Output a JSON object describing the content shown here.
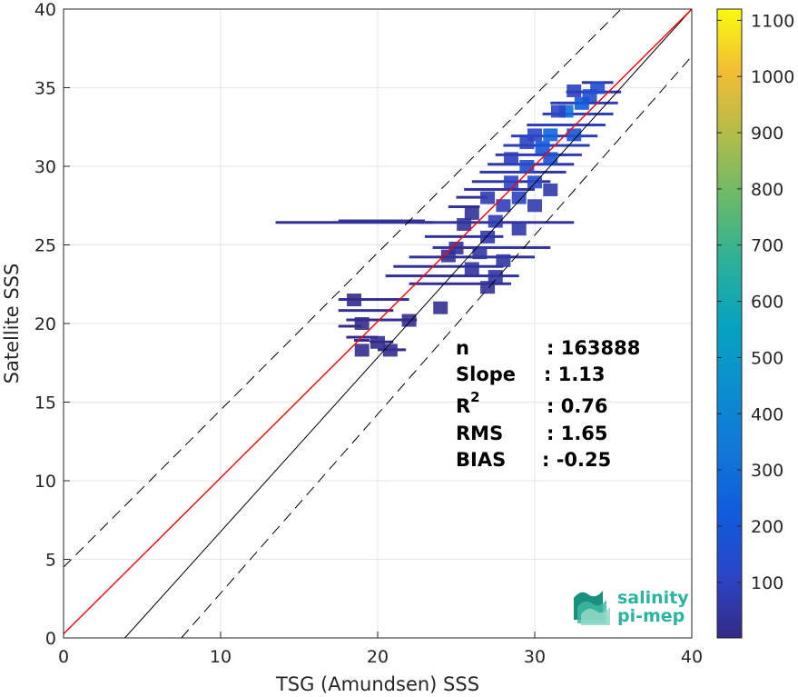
{
  "chart_data": {
    "type": "heatmap",
    "title": "",
    "xlabel": "TSG (Amundsen) SSS",
    "ylabel": "Satellite SSS",
    "xlim": [
      0,
      40
    ],
    "ylim": [
      0,
      40
    ],
    "xticks": [
      "0",
      "10",
      "20",
      "30",
      "40"
    ],
    "yticks": [
      "0",
      "5",
      "10",
      "15",
      "20",
      "25",
      "30",
      "35",
      "40"
    ],
    "grid": true,
    "colormap": "parula",
    "colorbar": {
      "range": [
        1,
        1120
      ],
      "ticks": [
        "100",
        "200",
        "300",
        "400",
        "500",
        "600",
        "700",
        "800",
        "900",
        "1000",
        "1100"
      ]
    },
    "stats": [
      {
        "label": "n",
        "value": ": 163888"
      },
      {
        "label": "Slope",
        "value": ": 1.13"
      },
      {
        "label": "R",
        "sup": "2",
        "value": ": 0.76"
      },
      {
        "label": "RMS",
        "value": ": 1.65"
      },
      {
        "label": "BIAS",
        "value": ": -0.25"
      }
    ],
    "lines": [
      {
        "name": "identity",
        "color": "#000000",
        "style": "solid",
        "x": [
          3.9,
          40
        ],
        "y": [
          0,
          40
        ]
      },
      {
        "name": "regression",
        "color": "#ff0000",
        "style": "solid",
        "x": [
          0,
          40
        ],
        "y": [
          0.25,
          40
        ]
      },
      {
        "name": "upper-bound",
        "color": "#000000",
        "style": "dashed",
        "x": [
          0,
          35.5
        ],
        "y": [
          4.5,
          40
        ]
      },
      {
        "name": "lower-bound",
        "color": "#000000",
        "style": "dashed",
        "x": [
          7.5,
          40
        ],
        "y": [
          0,
          37
        ]
      }
    ],
    "density_bins": [
      [
        32,
        33.5,
        300
      ],
      [
        31,
        32,
        260
      ],
      [
        30.5,
        31.2,
        200
      ],
      [
        33,
        34,
        220
      ],
      [
        32.5,
        32,
        180
      ],
      [
        29.5,
        30,
        150
      ],
      [
        30,
        29,
        130
      ],
      [
        31,
        30.5,
        170
      ],
      [
        33.5,
        34.5,
        160
      ],
      [
        34,
        35,
        140
      ],
      [
        28.5,
        29,
        110
      ],
      [
        29,
        28,
        100
      ],
      [
        28,
        27.5,
        90
      ],
      [
        27.5,
        26.5,
        80
      ],
      [
        27,
        28,
        70
      ],
      [
        28.5,
        30.5,
        90
      ],
      [
        30,
        32,
        120
      ],
      [
        31.5,
        33.5,
        110
      ],
      [
        32.5,
        34.8,
        90
      ],
      [
        29.5,
        31.5,
        100
      ],
      [
        27,
        25.5,
        60
      ],
      [
        26.5,
        24.5,
        50
      ],
      [
        28,
        24,
        55
      ],
      [
        27.5,
        23,
        45
      ],
      [
        26,
        23.5,
        40
      ],
      [
        29,
        26,
        60
      ],
      [
        30,
        27.5,
        70
      ],
      [
        31,
        28.5,
        60
      ],
      [
        27,
        22.3,
        35
      ],
      [
        24.5,
        24.3,
        30
      ],
      [
        25.5,
        26.3,
        35
      ],
      [
        26,
        27,
        30
      ],
      [
        25,
        24.8,
        25
      ],
      [
        24,
        21,
        20
      ],
      [
        22,
        20.2,
        15
      ],
      [
        20,
        18.8,
        10
      ],
      [
        19,
        18.3,
        10
      ],
      [
        20.8,
        18.3,
        12
      ],
      [
        18.5,
        21.5,
        8
      ],
      [
        19,
        20,
        8
      ]
    ],
    "density_streaks": [
      [
        13.5,
        23.5,
        26.4,
        30
      ],
      [
        17.5,
        23.0,
        26.5,
        35
      ],
      [
        22.5,
        32.5,
        26.4,
        40
      ],
      [
        23.0,
        28.0,
        25.5,
        35
      ],
      [
        23.5,
        31.0,
        24.8,
        40
      ],
      [
        22.0,
        30.0,
        24.2,
        35
      ],
      [
        21.0,
        28.0,
        23.6,
        30
      ],
      [
        20.5,
        29.0,
        23.0,
        30
      ],
      [
        22.0,
        28.5,
        22.5,
        25
      ],
      [
        17.5,
        22.0,
        21.5,
        20
      ],
      [
        17.5,
        21.0,
        20.8,
        20
      ],
      [
        18.0,
        22.5,
        20.2,
        18
      ],
      [
        17.5,
        19.0,
        19.8,
        12
      ],
      [
        18.0,
        20.0,
        19.1,
        12
      ],
      [
        18.5,
        19.5,
        18.9,
        10
      ],
      [
        20.0,
        21.8,
        18.3,
        14
      ],
      [
        19.5,
        21.0,
        18.8,
        10
      ],
      [
        25.0,
        27.0,
        28.0,
        30
      ],
      [
        24.5,
        26.5,
        27.4,
        30
      ],
      [
        25.5,
        30.0,
        28.5,
        40
      ],
      [
        26.0,
        31.0,
        29.0,
        45
      ],
      [
        26.5,
        32.0,
        29.6,
        55
      ],
      [
        27.0,
        32.5,
        30.1,
        60
      ],
      [
        27.5,
        33.0,
        30.7,
        70
      ],
      [
        28.0,
        33.5,
        31.3,
        80
      ],
      [
        28.5,
        34.0,
        31.9,
        90
      ],
      [
        29.5,
        34.5,
        32.6,
        90
      ],
      [
        30.5,
        35.0,
        33.3,
        80
      ],
      [
        31.0,
        35.3,
        34.0,
        70
      ],
      [
        32.0,
        35.5,
        34.7,
        60
      ],
      [
        33.0,
        35.0,
        35.3,
        40
      ]
    ]
  },
  "logo": {
    "line1": "salinity",
    "line2": "pi-mep"
  },
  "colors": {
    "regression": "#ff0000",
    "identity": "#000000",
    "axis": "#262626",
    "grid": "#e6e6e6",
    "logo": "#2bb59f"
  }
}
